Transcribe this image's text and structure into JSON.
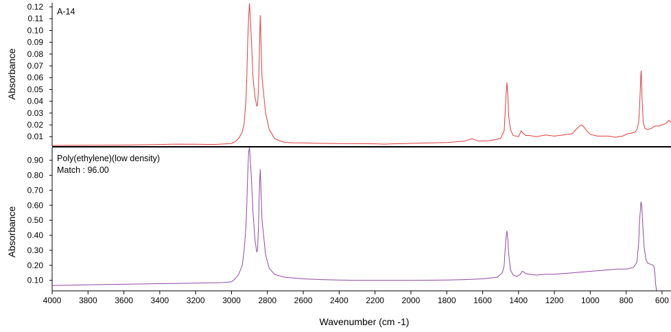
{
  "chart_data": [
    {
      "type": "line",
      "panel": "top",
      "annotation": [
        "A-14"
      ],
      "ylabel": "Absorbance",
      "xlabel": "",
      "xlim": [
        4000,
        550
      ],
      "ylim": [
        0.002,
        0.1235
      ],
      "y_ticks": [
        "0.01",
        "0.02",
        "0.03",
        "0.04",
        "0.05",
        "0.06",
        "0.07",
        "0.08",
        "0.09",
        "0.10",
        "0.11",
        "0.12"
      ],
      "y_tick_values": [
        0.01,
        0.02,
        0.03,
        0.04,
        0.05,
        0.06,
        0.07,
        0.08,
        0.09,
        0.1,
        0.11,
        0.12
      ],
      "color": "#e0393a",
      "series": [
        {
          "x": [
            4000,
            3800,
            3600,
            3400,
            3300,
            3200,
            3100,
            3000,
            2980,
            2960,
            2940,
            2930,
            2920,
            2915,
            2910,
            2905,
            2900,
            2890,
            2880,
            2870,
            2860,
            2855,
            2850,
            2845,
            2840,
            2830,
            2810,
            2790,
            2760,
            2720,
            2700,
            2650,
            2600,
            2500,
            2400,
            2300,
            2200,
            2150,
            2100,
            2000,
            1900,
            1800,
            1700,
            1660,
            1620,
            1560,
            1500,
            1480,
            1475,
            1470,
            1465,
            1460,
            1455,
            1445,
            1430,
            1400,
            1385,
            1375,
            1360,
            1340,
            1300,
            1250,
            1200,
            1150,
            1100,
            1080,
            1060,
            1050,
            1040,
            1030,
            1020,
            1000,
            960,
            900,
            860,
            820,
            790,
            770,
            750,
            740,
            730,
            725,
            720,
            718,
            716,
            712,
            705,
            695,
            680,
            660,
            640,
            620,
            600,
            580,
            560,
            552
          ],
          "y": [
            0.0026,
            0.0027,
            0.0029,
            0.0034,
            0.0037,
            0.0036,
            0.0034,
            0.0042,
            0.0058,
            0.0085,
            0.014,
            0.021,
            0.04,
            0.06,
            0.09,
            0.11,
            0.123,
            0.095,
            0.06,
            0.045,
            0.036,
            0.037,
            0.05,
            0.08,
            0.113,
            0.06,
            0.03,
            0.016,
            0.0085,
            0.0058,
            0.0052,
            0.0048,
            0.0047,
            0.0043,
            0.0042,
            0.0041,
            0.004,
            0.0037,
            0.004,
            0.0043,
            0.0047,
            0.0051,
            0.0062,
            0.0082,
            0.0062,
            0.0065,
            0.0085,
            0.015,
            0.03,
            0.045,
            0.056,
            0.045,
            0.028,
            0.016,
            0.011,
            0.01,
            0.015,
            0.013,
            0.011,
            0.011,
            0.01,
            0.0115,
            0.0105,
            0.0115,
            0.0125,
            0.016,
            0.019,
            0.02,
            0.019,
            0.017,
            0.015,
            0.012,
            0.0105,
            0.0105,
            0.0095,
            0.0105,
            0.0125,
            0.013,
            0.014,
            0.016,
            0.022,
            0.035,
            0.055,
            0.063,
            0.066,
            0.045,
            0.022,
            0.017,
            0.016,
            0.017,
            0.019,
            0.019,
            0.02,
            0.021,
            0.024,
            0.022
          ]
        }
      ]
    },
    {
      "type": "line",
      "panel": "bottom",
      "annotation": [
        "Poly(ethylene)(low density)",
        "Match : 96.00"
      ],
      "ylabel": "Absorbance",
      "xlabel": "Wavenumber  (cm  -1)",
      "xlim": [
        4000,
        550
      ],
      "ylim": [
        0.03,
        0.985
      ],
      "x_ticks": [
        "4000",
        "3800",
        "3600",
        "3400",
        "3200",
        "3000",
        "2800",
        "2600",
        "2400",
        "2200",
        "2000",
        "1800",
        "1600",
        "1400",
        "1200",
        "1000",
        "800",
        "600"
      ],
      "x_tick_values": [
        4000,
        3800,
        3600,
        3400,
        3200,
        3000,
        2800,
        2600,
        2400,
        2200,
        2000,
        1800,
        1600,
        1400,
        1200,
        1000,
        800,
        600
      ],
      "y_ticks": [
        "0.10",
        "0.20",
        "0.30",
        "0.40",
        "0.50",
        "0.60",
        "0.70",
        "0.80",
        "0.90"
      ],
      "y_tick_values": [
        0.1,
        0.2,
        0.3,
        0.4,
        0.5,
        0.6,
        0.7,
        0.8,
        0.9
      ],
      "color": "#8f46a2",
      "series": [
        {
          "x": [
            4000,
            3900,
            3800,
            3700,
            3600,
            3400,
            3200,
            3050,
            3000,
            2980,
            2960,
            2940,
            2930,
            2920,
            2915,
            2910,
            2905,
            2900,
            2890,
            2880,
            2870,
            2860,
            2855,
            2850,
            2845,
            2840,
            2830,
            2810,
            2790,
            2760,
            2720,
            2700,
            2650,
            2600,
            2500,
            2400,
            2300,
            2200,
            2000,
            1800,
            1700,
            1600,
            1520,
            1490,
            1480,
            1475,
            1470,
            1465,
            1460,
            1455,
            1445,
            1430,
            1410,
            1390,
            1380,
            1370,
            1360,
            1340,
            1300,
            1250,
            1200,
            1150,
            1100,
            1050,
            1000,
            950,
            900,
            850,
            800,
            760,
            740,
            730,
            725,
            720,
            718,
            716,
            712,
            706,
            700,
            690,
            680,
            660,
            650,
            645,
            640,
            636,
            632,
            628
          ],
          "y": [
            0.065,
            0.068,
            0.07,
            0.072,
            0.074,
            0.078,
            0.081,
            0.085,
            0.09,
            0.11,
            0.14,
            0.2,
            0.3,
            0.45,
            0.6,
            0.8,
            0.95,
            0.985,
            0.8,
            0.55,
            0.38,
            0.29,
            0.3,
            0.45,
            0.7,
            0.84,
            0.5,
            0.27,
            0.18,
            0.14,
            0.125,
            0.12,
            0.115,
            0.11,
            0.105,
            0.102,
            0.1,
            0.1,
            0.1,
            0.102,
            0.105,
            0.11,
            0.12,
            0.15,
            0.2,
            0.3,
            0.38,
            0.43,
            0.38,
            0.28,
            0.17,
            0.135,
            0.125,
            0.14,
            0.16,
            0.155,
            0.145,
            0.14,
            0.135,
            0.14,
            0.14,
            0.145,
            0.15,
            0.155,
            0.16,
            0.165,
            0.17,
            0.175,
            0.175,
            0.185,
            0.22,
            0.35,
            0.5,
            0.58,
            0.615,
            0.62,
            0.58,
            0.44,
            0.32,
            0.24,
            0.215,
            0.205,
            0.2,
            0.19,
            0.15,
            0.08,
            0.04,
            0.03
          ]
        }
      ]
    }
  ]
}
